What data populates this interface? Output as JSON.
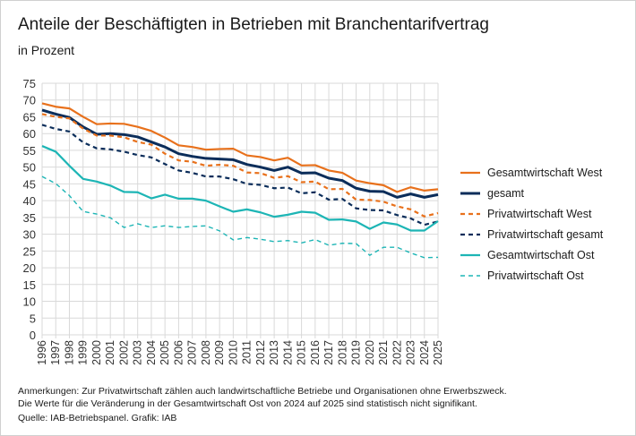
{
  "chart_data": {
    "type": "line",
    "title": "Anteile der Beschäftigten in Betrieben mit Branchentarifvertrag",
    "subtitle": "in Prozent",
    "xlabel": "",
    "ylabel": "",
    "ylim": [
      0,
      75
    ],
    "yticks": [
      0,
      5,
      10,
      15,
      20,
      25,
      30,
      35,
      40,
      45,
      50,
      55,
      60,
      65,
      70,
      75
    ],
    "grid": true,
    "legend_position": "right",
    "x": [
      1996,
      1997,
      1998,
      1999,
      2000,
      2001,
      2002,
      2003,
      2004,
      2005,
      2006,
      2007,
      2008,
      2009,
      2010,
      2011,
      2012,
      2013,
      2014,
      2015,
      2016,
      2017,
      2018,
      2019,
      2020,
      2021,
      2022,
      2023,
      2024,
      2025
    ],
    "series": [
      {
        "name": "Gesamtwirtschaft West",
        "color": "#e8711c",
        "style": "solid",
        "values": [
          69,
          68,
          67.5,
          65,
          62.8,
          63,
          62.9,
          62,
          60.8,
          58.8,
          56.5,
          56,
          55.2,
          55.4,
          55.5,
          53.5,
          53,
          52,
          52.8,
          50.5,
          50.6,
          49,
          48.3,
          46,
          45.2,
          44.6,
          42.6,
          44,
          43,
          43.4
        ]
      },
      {
        "name": "gesamt",
        "color": "#0b2d5a",
        "style": "solid-bold",
        "values": [
          67,
          65.8,
          64.8,
          62,
          59.8,
          60,
          59.7,
          59,
          57.5,
          56,
          54,
          53.2,
          52.6,
          52.4,
          52.2,
          50.8,
          50,
          49,
          50,
          48.2,
          48.3,
          46.7,
          46,
          43.7,
          42.8,
          42.7,
          41,
          42,
          41,
          41.8
        ]
      },
      {
        "name": "Privatwirtschaft West",
        "color": "#e8711c",
        "style": "dashed",
        "values": [
          65.8,
          65,
          64.5,
          61.5,
          59.4,
          59.4,
          58.9,
          57.5,
          56.7,
          54,
          52,
          51.6,
          50.4,
          50.7,
          50.4,
          48.4,
          48.2,
          46.8,
          47.3,
          45.5,
          45.7,
          43.4,
          43.5,
          40.3,
          40.2,
          39.7,
          38.3,
          37.4,
          35.3,
          36.3
        ]
      },
      {
        "name": "Privatwirtschaft gesamt",
        "color": "#0b2d5a",
        "style": "dashed",
        "values": [
          62.6,
          61.4,
          60.6,
          57.4,
          55.6,
          55.3,
          54.6,
          53.6,
          52.9,
          50.9,
          49,
          48.3,
          47.2,
          47.2,
          46.4,
          45,
          44.7,
          43.7,
          43.9,
          42.2,
          42.5,
          40.3,
          40.5,
          37.7,
          37.2,
          37.1,
          35.7,
          34.7,
          32.8,
          33.8
        ]
      },
      {
        "name": "Gesamtwirtschaft Ost",
        "color": "#1db5b5",
        "style": "solid",
        "values": [
          56.3,
          54.6,
          50.4,
          46.5,
          45.7,
          44.5,
          42.6,
          42.5,
          40.7,
          41.8,
          40.6,
          40.6,
          40,
          38.3,
          36.7,
          37.4,
          36.5,
          35.2,
          35.8,
          36.7,
          36.4,
          34.3,
          34.4,
          33.8,
          31.6,
          33.5,
          32.9,
          31.1,
          31.1,
          33.9
        ]
      },
      {
        "name": "Privatwirtschaft Ost",
        "color": "#1db5b5",
        "style": "dashed-thin",
        "values": [
          47.2,
          45.1,
          41.5,
          36.8,
          36,
          34.9,
          32,
          33.1,
          32,
          32.5,
          32,
          32.3,
          32.5,
          31,
          28.3,
          29,
          28.5,
          27.8,
          28.1,
          27.4,
          28.4,
          26.7,
          27.3,
          27.2,
          23.7,
          26.1,
          26.1,
          24.4,
          23,
          23.1
        ]
      }
    ]
  },
  "notes": {
    "line1": "Anmerkungen: Zur Privatwirtschaft zählen auch landwirtschaftliche Betriebe und Organisationen ohne Erwerbszweck.",
    "line2": "Die Werte für die Veränderung in der Gesamtwirtschaft Ost von 2024 auf 2025 sind statistisch nicht signifikant.",
    "source": "Quelle: IAB-Betriebspanel.  Grafik: IAB"
  }
}
